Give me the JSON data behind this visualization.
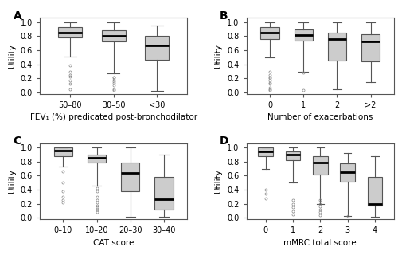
{
  "panel_A": {
    "label": "A",
    "xlabel": "FEV₁ (%) predicated post-bronchodilator",
    "ylabel": "Utility",
    "categories": [
      "50–80",
      "30–50",
      "<30"
    ],
    "boxes": [
      {
        "q1": 0.78,
        "median": 0.855,
        "q3": 0.93,
        "whislo": 0.51,
        "whishi": 1.0,
        "fliers": [
          0.38,
          0.3,
          0.25,
          0.23,
          0.17,
          0.13,
          0.04
        ]
      },
      {
        "q1": 0.73,
        "median": 0.8,
        "q3": 0.88,
        "whislo": 0.27,
        "whishi": 1.0,
        "fliers": [
          0.22,
          0.21,
          0.18,
          0.16,
          0.14,
          0.1,
          0.05,
          0.03
        ]
      },
      {
        "q1": 0.47,
        "median": 0.67,
        "q3": 0.8,
        "whislo": 0.02,
        "whishi": 0.95,
        "fliers": []
      }
    ]
  },
  "panel_B": {
    "label": "B",
    "xlabel": "Number of exacerbations",
    "ylabel": "Utility",
    "categories": [
      "0",
      "1",
      "2",
      ">2"
    ],
    "boxes": [
      {
        "q1": 0.76,
        "median": 0.855,
        "q3": 0.93,
        "whislo": 0.5,
        "whishi": 1.0,
        "fliers": [
          0.3,
          0.25,
          0.22,
          0.2,
          0.17,
          0.14,
          0.12,
          0.07,
          0.04,
          0.03
        ]
      },
      {
        "q1": 0.74,
        "median": 0.81,
        "q3": 0.89,
        "whislo": 0.29,
        "whishi": 1.0,
        "fliers": [
          0.28,
          0.03
        ]
      },
      {
        "q1": 0.45,
        "median": 0.76,
        "q3": 0.85,
        "whislo": 0.05,
        "whishi": 1.0,
        "fliers": []
      },
      {
        "q1": 0.44,
        "median": 0.72,
        "q3": 0.83,
        "whislo": 0.15,
        "whishi": 1.0,
        "fliers": []
      }
    ]
  },
  "panel_C": {
    "label": "C",
    "xlabel": "CAT score",
    "ylabel": "Utility",
    "categories": [
      "0–10",
      "10–20",
      "20–30",
      "30–40"
    ],
    "boxes": [
      {
        "q1": 0.88,
        "median": 0.96,
        "q3": 1.0,
        "whislo": 0.73,
        "whishi": 1.0,
        "fliers": [
          0.66,
          0.5,
          0.38,
          0.3,
          0.25,
          0.22
        ]
      },
      {
        "q1": 0.79,
        "median": 0.855,
        "q3": 0.9,
        "whislo": 0.46,
        "whishi": 1.0,
        "fliers": [
          0.42,
          0.38,
          0.3,
          0.25,
          0.22,
          0.18,
          0.15,
          0.12,
          0.08
        ]
      },
      {
        "q1": 0.38,
        "median": 0.64,
        "q3": 0.79,
        "whislo": 0.02,
        "whishi": 1.0,
        "fliers": []
      },
      {
        "q1": 0.12,
        "median": 0.27,
        "q3": 0.58,
        "whislo": 0.02,
        "whishi": 0.9,
        "fliers": []
      }
    ]
  },
  "panel_D": {
    "label": "D",
    "xlabel": "mMRC total score",
    "ylabel": "Utility",
    "categories": [
      "0",
      "1",
      "2",
      "3",
      "4"
    ],
    "boxes": [
      {
        "q1": 0.88,
        "median": 0.95,
        "q3": 1.0,
        "whislo": 0.7,
        "whishi": 1.0,
        "fliers": [
          0.4,
          0.35,
          0.28
        ]
      },
      {
        "q1": 0.82,
        "median": 0.9,
        "q3": 0.95,
        "whislo": 0.5,
        "whishi": 1.0,
        "fliers": [
          0.25,
          0.2,
          0.15,
          0.1,
          0.05
        ]
      },
      {
        "q1": 0.62,
        "median": 0.79,
        "q3": 0.88,
        "whislo": 0.2,
        "whishi": 1.0,
        "fliers": [
          0.25,
          0.2,
          0.16,
          0.12,
          0.08,
          0.04
        ]
      },
      {
        "q1": 0.52,
        "median": 0.65,
        "q3": 0.78,
        "whislo": 0.03,
        "whishi": 0.92,
        "fliers": [
          0.03
        ]
      },
      {
        "q1": 0.18,
        "median": 0.2,
        "q3": 0.58,
        "whislo": 0.02,
        "whishi": 0.88,
        "fliers": []
      }
    ]
  },
  "box_facecolor": "#cccccc",
  "box_edgecolor": "#555555",
  "median_color": "#000000",
  "flier_color": "#888888",
  "whisker_color": "#555555",
  "cap_color": "#555555",
  "spine_color": "#555555",
  "ylim": [
    -0.02,
    1.06
  ],
  "yticks": [
    0.0,
    0.2,
    0.4,
    0.6,
    0.8,
    1.0
  ],
  "label_fontsize": 7.5,
  "tick_fontsize": 7.0,
  "panel_label_fontsize": 10
}
